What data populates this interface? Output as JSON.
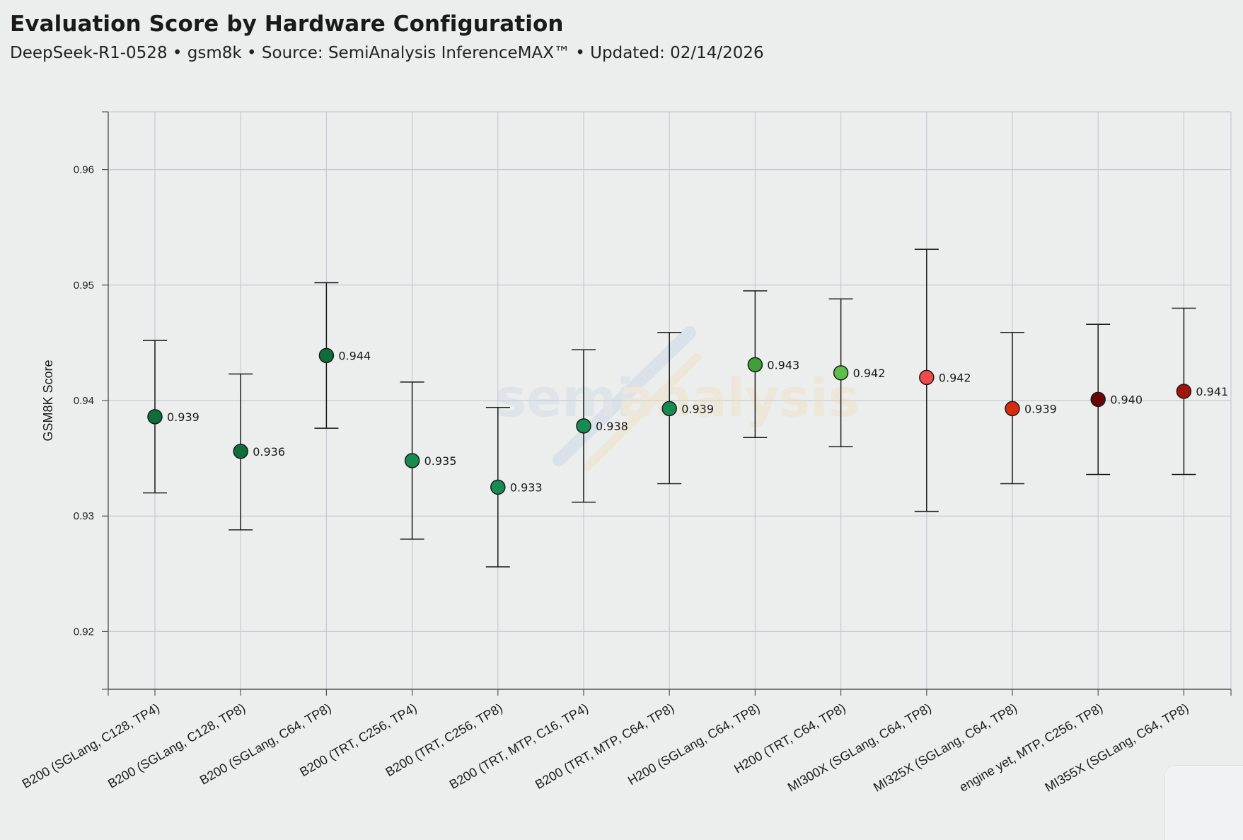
{
  "header": {
    "title": "Evaluation Score by Hardware Configuration",
    "subtitle": "DeepSeek-R1-0528 • gsm8k • Source: SemiAnalysis InferenceMAX™ • Updated: 02/14/2026"
  },
  "watermark": {
    "part1": "semi",
    "part2": "analysis"
  },
  "chart_data": {
    "type": "scatter",
    "title": "Evaluation Score by Hardware Configuration",
    "xlabel": "",
    "ylabel": "GSM8K Score",
    "ylim": [
      0.915,
      0.965
    ],
    "yticks": [
      0.92,
      0.93,
      0.94,
      0.95,
      0.96
    ],
    "ytick_labels": [
      "0.92",
      "0.93",
      "0.94",
      "0.95",
      "0.96"
    ],
    "grid": true,
    "points": [
      {
        "label": "B200 (SGLang, C128, TP4)",
        "value": 0.9386,
        "low": 0.932,
        "high": 0.9452,
        "value_label": "0.939",
        "color": "#0f6e3a"
      },
      {
        "label": "B200 (SGLang, C128, TP8)",
        "value": 0.9356,
        "low": 0.9288,
        "high": 0.9423,
        "value_label": "0.936",
        "color": "#0f6e3a"
      },
      {
        "label": "B200 (SGLang, C64, TP8)",
        "value": 0.9439,
        "low": 0.9376,
        "high": 0.9502,
        "value_label": "0.944",
        "color": "#0f6e3a"
      },
      {
        "label": "B200 (TRT, C256, TP4)",
        "value": 0.9348,
        "low": 0.928,
        "high": 0.9416,
        "value_label": "0.935",
        "color": "#178c52"
      },
      {
        "label": "B200 (TRT, C256, TP8)",
        "value": 0.9325,
        "low": 0.9256,
        "high": 0.9394,
        "value_label": "0.933",
        "color": "#178c52"
      },
      {
        "label": "B200 (TRT, MTP, C16, TP4)",
        "value": 0.9378,
        "low": 0.9312,
        "high": 0.9444,
        "value_label": "0.938",
        "color": "#178c52"
      },
      {
        "label": "B200 (TRT, MTP, C64, TP8)",
        "value": 0.9393,
        "low": 0.9328,
        "high": 0.9459,
        "value_label": "0.939",
        "color": "#178c52"
      },
      {
        "label": "H200 (SGLang, C64, TP8)",
        "value": 0.9431,
        "low": 0.9368,
        "high": 0.9495,
        "value_label": "0.943",
        "color": "#3fa03a"
      },
      {
        "label": "H200 (TRT, C64, TP8)",
        "value": 0.9424,
        "low": 0.936,
        "high": 0.9488,
        "value_label": "0.942",
        "color": "#5cbf4a"
      },
      {
        "label": "MI300X (SGLang, C64, TP8)",
        "value": 0.942,
        "low": 0.9304,
        "high": 0.9531,
        "value_label": "0.942",
        "color": "#f04a4a"
      },
      {
        "label": "MI325X (SGLang, C64, TP8)",
        "value": 0.9393,
        "low": 0.9328,
        "high": 0.9459,
        "value_label": "0.939",
        "color": "#d82a0c"
      },
      {
        "label": "engine yet, MTP, C256, TP8)",
        "value": 0.9401,
        "low": 0.9336,
        "high": 0.9466,
        "value_label": "0.940",
        "color": "#6b0505"
      },
      {
        "label": "MI355X (SGLang, C64, TP8)",
        "value": 0.9408,
        "low": 0.9336,
        "high": 0.948,
        "value_label": "0.941",
        "color": "#a0140a"
      }
    ]
  }
}
